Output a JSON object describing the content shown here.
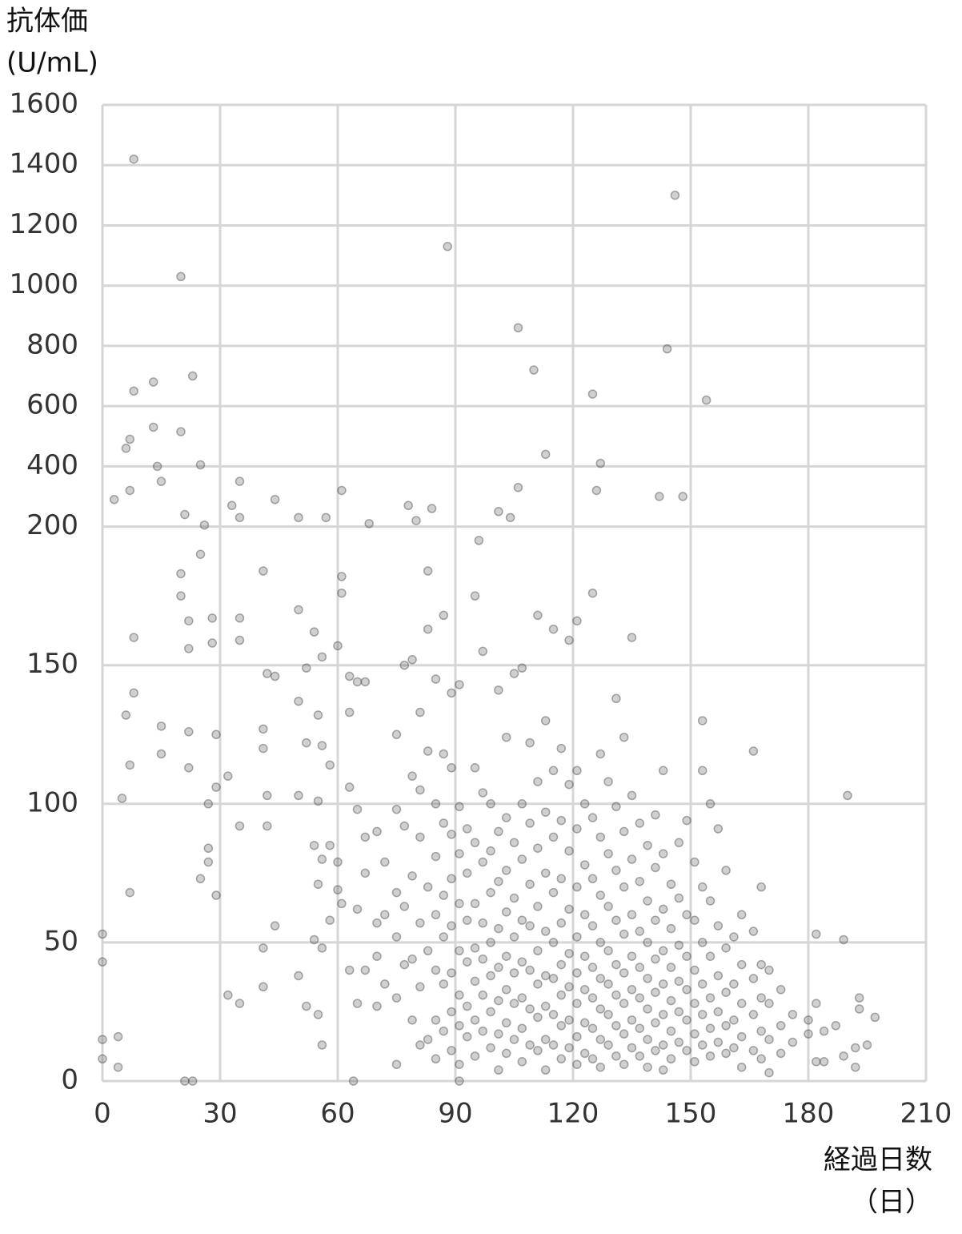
{
  "chart_data": {
    "type": "scatter",
    "ylabel": "抗体価",
    "yunit": "(U/mL)",
    "xlabel": "経過日数",
    "xunit": "（日）",
    "xlim": [
      0,
      210
    ],
    "xticks": [
      0,
      30,
      60,
      90,
      120,
      150,
      180,
      210
    ],
    "ylim": [
      0,
      1600
    ],
    "y_break": 200,
    "yticks": [
      0,
      50,
      100,
      150,
      200,
      400,
      600,
      800,
      1000,
      1200,
      1400,
      1600
    ],
    "grid": true,
    "color": "#444444",
    "x": [
      8,
      20,
      88,
      146,
      106,
      110,
      144,
      125,
      154,
      23,
      13,
      8,
      20,
      13,
      7,
      6,
      14,
      25,
      15,
      35,
      7,
      3,
      61,
      44,
      33,
      21,
      35,
      78,
      84,
      106,
      113,
      127,
      126,
      142,
      148,
      101,
      104,
      50,
      57,
      80,
      68,
      26,
      96,
      0,
      0,
      0,
      0,
      4,
      4,
      5,
      6,
      7,
      7,
      8,
      8,
      15,
      15,
      20,
      20,
      22,
      22,
      22,
      22,
      25,
      25,
      27,
      27,
      27,
      28,
      28,
      29,
      29,
      29,
      32,
      32,
      35,
      35,
      35,
      35,
      41,
      41,
      41,
      41,
      41,
      42,
      42,
      42,
      44,
      44,
      50,
      50,
      50,
      50,
      52,
      52,
      52,
      54,
      54,
      54,
      55,
      55,
      55,
      55,
      56,
      56,
      56,
      56,
      56,
      58,
      58,
      58,
      60,
      60,
      60,
      61,
      61,
      61,
      63,
      63,
      63,
      63,
      65,
      65,
      65,
      65,
      67,
      67,
      67,
      67,
      70,
      70,
      70,
      70,
      72,
      72,
      72,
      75,
      75,
      75,
      75,
      75,
      75,
      77,
      77,
      77,
      77,
      79,
      79,
      79,
      79,
      79,
      81,
      81,
      81,
      81,
      81,
      81,
      83,
      83,
      83,
      83,
      83,
      83,
      85,
      85,
      85,
      85,
      85,
      85,
      85,
      87,
      87,
      87,
      87,
      87,
      87,
      87,
      89,
      89,
      89,
      89,
      89,
      89,
      89,
      89,
      91,
      91,
      91,
      91,
      91,
      91,
      91,
      91,
      91,
      93,
      93,
      93,
      93,
      93,
      93,
      95,
      95,
      95,
      95,
      95,
      95,
      95,
      95,
      97,
      97,
      97,
      97,
      97,
      97,
      97,
      99,
      99,
      99,
      99,
      99,
      99,
      99,
      101,
      101,
      101,
      101,
      101,
      101,
      101,
      101,
      103,
      103,
      103,
      103,
      103,
      103,
      103,
      103,
      105,
      105,
      105,
      105,
      105,
      105,
      105,
      107,
      107,
      107,
      107,
      107,
      107,
      107,
      107,
      109,
      109,
      109,
      109,
      109,
      109,
      109,
      111,
      111,
      111,
      111,
      111,
      111,
      111,
      111,
      113,
      113,
      113,
      113,
      113,
      113,
      113,
      113,
      115,
      115,
      115,
      115,
      115,
      115,
      115,
      115,
      117,
      117,
      117,
      117,
      117,
      117,
      117,
      117,
      119,
      119,
      119,
      119,
      119,
      119,
      119,
      119,
      121,
      121,
      121,
      121,
      121,
      121,
      121,
      121,
      121,
      123,
      123,
      123,
      123,
      123,
      123,
      123,
      125,
      125,
      125,
      125,
      125,
      125,
      125,
      125,
      127,
      127,
      127,
      127,
      127,
      127,
      127,
      127,
      129,
      129,
      129,
      129,
      129,
      129,
      129,
      131,
      131,
      131,
      131,
      131,
      131,
      131,
      131,
      133,
      133,
      133,
      133,
      133,
      133,
      133,
      133,
      135,
      135,
      135,
      135,
      135,
      135,
      135,
      135,
      137,
      137,
      137,
      137,
      137,
      137,
      137,
      139,
      139,
      139,
      139,
      139,
      139,
      139,
      141,
      141,
      141,
      141,
      141,
      141,
      141,
      143,
      143,
      143,
      143,
      143,
      143,
      143,
      143,
      145,
      145,
      145,
      145,
      145,
      145,
      147,
      147,
      147,
      147,
      147,
      147,
      149,
      149,
      149,
      149,
      149,
      149,
      151,
      151,
      151,
      151,
      151,
      151,
      153,
      153,
      153,
      153,
      153,
      153,
      153,
      155,
      155,
      155,
      155,
      155,
      155,
      157,
      157,
      157,
      157,
      157,
      159,
      159,
      159,
      159,
      159,
      161,
      161,
      161,
      161,
      163,
      163,
      163,
      163,
      163,
      166,
      166,
      166,
      166,
      166,
      168,
      168,
      168,
      168,
      168,
      170,
      170,
      170,
      170,
      173,
      173,
      173,
      176,
      176,
      180,
      180,
      182,
      182,
      182,
      184,
      184,
      187,
      189,
      189,
      190,
      192,
      192,
      193,
      193,
      195,
      197,
      21,
      23,
      64
    ],
    "values": [
      1420,
      1030,
      1130,
      1300,
      860,
      720,
      790,
      640,
      620,
      700,
      680,
      650,
      515,
      530,
      490,
      460,
      400,
      405,
      350,
      350,
      320,
      290,
      320,
      290,
      270,
      240,
      230,
      270,
      260,
      330,
      440,
      410,
      320,
      300,
      300,
      250,
      230,
      230,
      230,
      220,
      210,
      205,
      195,
      53,
      43,
      15,
      8,
      16,
      5,
      102,
      132,
      114,
      68,
      160,
      140,
      128,
      118,
      183,
      175,
      166,
      156,
      126,
      113,
      190,
      73,
      100,
      84,
      79,
      167,
      158,
      125,
      106,
      67,
      110,
      31,
      167,
      159,
      92,
      28,
      184,
      127,
      120,
      48,
      34,
      147,
      103,
      92,
      146,
      56,
      170,
      137,
      103,
      38,
      149,
      122,
      27,
      162,
      85,
      51,
      132,
      101,
      71,
      24,
      153,
      121,
      80,
      48,
      13,
      114,
      85,
      58,
      157,
      79,
      69,
      182,
      176,
      64,
      146,
      133,
      106,
      40,
      144,
      98,
      62,
      28,
      144,
      88,
      75,
      40,
      90,
      57,
      45,
      27,
      79,
      60,
      35,
      125,
      98,
      68,
      52,
      30,
      6,
      150,
      92,
      63,
      42,
      152,
      110,
      74,
      44,
      22,
      133,
      105,
      88,
      57,
      34,
      13,
      184,
      163,
      119,
      70,
      47,
      15,
      145,
      100,
      81,
      60,
      40,
      22,
      8,
      168,
      118,
      93,
      67,
      52,
      35,
      18,
      140,
      113,
      89,
      73,
      56,
      39,
      25,
      11,
      143,
      99,
      82,
      64,
      47,
      31,
      20,
      6,
      0,
      91,
      75,
      58,
      43,
      27,
      16,
      175,
      113,
      86,
      64,
      48,
      36,
      22,
      9,
      155,
      104,
      79,
      57,
      44,
      31,
      18,
      100,
      83,
      68,
      50,
      38,
      25,
      12,
      141,
      90,
      72,
      55,
      41,
      29,
      17,
      4,
      124,
      95,
      76,
      61,
      45,
      33,
      21,
      10,
      147,
      86,
      66,
      52,
      39,
      28,
      15,
      149,
      100,
      80,
      58,
      43,
      30,
      19,
      7,
      122,
      93,
      71,
      56,
      40,
      26,
      13,
      168,
      108,
      84,
      63,
      47,
      35,
      23,
      11,
      130,
      97,
      75,
      54,
      38,
      27,
      15,
      4,
      163,
      112,
      88,
      68,
      50,
      37,
      24,
      13,
      120,
      94,
      73,
      57,
      42,
      31,
      20,
      8,
      159,
      107,
      83,
      62,
      46,
      34,
      22,
      12,
      166,
      112,
      91,
      70,
      52,
      39,
      28,
      16,
      6,
      100,
      78,
      60,
      45,
      33,
      21,
      10,
      176,
      95,
      73,
      56,
      41,
      30,
      19,
      8,
      118,
      88,
      67,
      50,
      37,
      26,
      15,
      5,
      108,
      82,
      63,
      47,
      35,
      24,
      13,
      138,
      99,
      76,
      58,
      42,
      31,
      20,
      9,
      124,
      90,
      70,
      53,
      39,
      28,
      17,
      6,
      160,
      103,
      80,
      60,
      45,
      33,
      22,
      12,
      93,
      72,
      54,
      41,
      30,
      19,
      9,
      85,
      65,
      50,
      37,
      26,
      15,
      5,
      96,
      77,
      58,
      44,
      32,
      21,
      11,
      112,
      82,
      62,
      47,
      35,
      24,
      13,
      4,
      71,
      55,
      41,
      29,
      18,
      8,
      86,
      66,
      49,
      36,
      25,
      14,
      94,
      60,
      45,
      33,
      22,
      11,
      79,
      58,
      40,
      28,
      17,
      7,
      130,
      112,
      70,
      50,
      35,
      24,
      13,
      100,
      65,
      45,
      30,
      19,
      9,
      91,
      56,
      38,
      25,
      14,
      76,
      48,
      32,
      20,
      10,
      52,
      35,
      22,
      12,
      60,
      42,
      28,
      16,
      5,
      119,
      54,
      37,
      24,
      11,
      70,
      42,
      30,
      18,
      8,
      40,
      28,
      15,
      3,
      33,
      20,
      10,
      24,
      14,
      22,
      17,
      53,
      28,
      7,
      18,
      7,
      20,
      51,
      9,
      103,
      12,
      5,
      30,
      26,
      13,
      23,
      0,
      0,
      0
    ]
  }
}
